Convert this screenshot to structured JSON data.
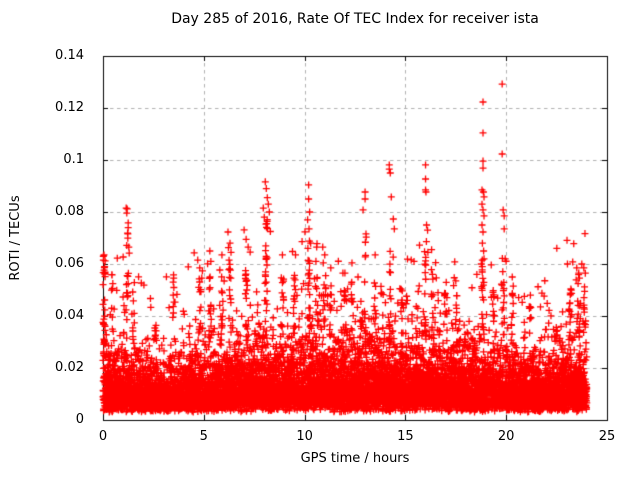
{
  "window": {
    "background": "#ffffff",
    "text_color": "#000000"
  },
  "chart_data": {
    "type": "scatter",
    "title": "Day 285 of 2016, Rate Of TEC Index for receiver ista",
    "xlabel": "GPS time / hours",
    "ylabel": "ROTI / TECUs",
    "xlim": [
      0,
      25
    ],
    "ylim": [
      0,
      0.14
    ],
    "xticks": [
      0,
      5,
      10,
      15,
      20,
      25
    ],
    "yticks": [
      0,
      0.02,
      0.04,
      0.06,
      0.08,
      0.1,
      0.12,
      0.14
    ],
    "xtick_labels": [
      "0",
      "5",
      "10",
      "15",
      "20",
      "25"
    ],
    "ytick_labels": [
      "0",
      "0.02",
      "0.04",
      "0.06",
      "0.08",
      "0.1",
      "0.12",
      "0.14"
    ],
    "grid": true,
    "grid_color": "#b0b0b0",
    "frame_color": "#000000",
    "marker": "plus",
    "marker_size": 7,
    "color": "#ff0000",
    "x_data_range": [
      0,
      24
    ],
    "n_points": 9000,
    "seed": 7,
    "y_floor": 0.003,
    "tail_fraction": 0.07,
    "hourly_dense_top": [
      0.03,
      0.027,
      0.023,
      0.022,
      0.024,
      0.027,
      0.028,
      0.03,
      0.032,
      0.031,
      0.034,
      0.032,
      0.031,
      0.032,
      0.034,
      0.031,
      0.032,
      0.029,
      0.031,
      0.029,
      0.027,
      0.024,
      0.026,
      0.03
    ],
    "hourly_max": [
      0.052,
      0.05,
      0.042,
      0.04,
      0.048,
      0.053,
      0.054,
      0.056,
      0.058,
      0.056,
      0.058,
      0.055,
      0.052,
      0.055,
      0.056,
      0.052,
      0.055,
      0.048,
      0.056,
      0.052,
      0.048,
      0.043,
      0.047,
      0.058
    ],
    "clusters": [
      {
        "x": 0.05,
        "top": 0.063,
        "n": 22
      },
      {
        "x": 0.45,
        "top": 0.056,
        "n": 8
      },
      {
        "x": 1.2,
        "top": 0.075,
        "n": 14
      },
      {
        "x": 1.5,
        "top": 0.053,
        "n": 8
      },
      {
        "x": 2.6,
        "top": 0.044,
        "n": 8
      },
      {
        "x": 3.5,
        "top": 0.056,
        "n": 8
      },
      {
        "x": 4.8,
        "top": 0.06,
        "n": 12
      },
      {
        "x": 5.3,
        "top": 0.058,
        "n": 12
      },
      {
        "x": 5.9,
        "top": 0.056,
        "n": 10
      },
      {
        "x": 6.3,
        "top": 0.062,
        "n": 12
      },
      {
        "x": 7.1,
        "top": 0.06,
        "n": 12
      },
      {
        "x": 8.1,
        "top": 0.078,
        "n": 22
      },
      {
        "x": 8.9,
        "top": 0.056,
        "n": 10
      },
      {
        "x": 9.5,
        "top": 0.057,
        "n": 12
      },
      {
        "x": 10.2,
        "top": 0.072,
        "n": 16
      },
      {
        "x": 10.6,
        "top": 0.058,
        "n": 10
      },
      {
        "x": 11.0,
        "top": 0.058,
        "n": 10
      },
      {
        "x": 11.3,
        "top": 0.052,
        "n": 8
      },
      {
        "x": 12.0,
        "top": 0.05,
        "n": 8
      },
      {
        "x": 12.35,
        "top": 0.053,
        "n": 8
      },
      {
        "x": 13.0,
        "top": 0.072,
        "n": 10
      },
      {
        "x": 13.5,
        "top": 0.056,
        "n": 8
      },
      {
        "x": 14.25,
        "top": 0.068,
        "n": 12
      },
      {
        "x": 14.8,
        "top": 0.05,
        "n": 8
      },
      {
        "x": 16.0,
        "top": 0.07,
        "n": 14
      },
      {
        "x": 16.35,
        "top": 0.058,
        "n": 10
      },
      {
        "x": 17.0,
        "top": 0.05,
        "n": 8
      },
      {
        "x": 17.5,
        "top": 0.048,
        "n": 8
      },
      {
        "x": 18.85,
        "top": 0.062,
        "n": 18
      },
      {
        "x": 19.35,
        "top": 0.05,
        "n": 8
      },
      {
        "x": 19.85,
        "top": 0.058,
        "n": 10
      },
      {
        "x": 20.3,
        "top": 0.05,
        "n": 8
      },
      {
        "x": 21.2,
        "top": 0.044,
        "n": 6
      },
      {
        "x": 23.2,
        "top": 0.052,
        "n": 10
      },
      {
        "x": 23.6,
        "top": 0.056,
        "n": 12
      },
      {
        "x": 23.9,
        "top": 0.058,
        "n": 10
      }
    ],
    "peaks": [
      [
        0.02,
        0.0615
      ],
      [
        0.05,
        0.0635
      ],
      [
        0.08,
        0.059
      ],
      [
        0.1,
        0.0565
      ],
      [
        0.45,
        0.0558
      ],
      [
        1.0,
        0.0627
      ],
      [
        1.15,
        0.0815
      ],
      [
        1.2,
        0.0812
      ],
      [
        1.18,
        0.0796
      ],
      [
        1.25,
        0.0758
      ],
      [
        1.22,
        0.0719
      ],
      [
        1.28,
        0.0665
      ],
      [
        1.3,
        0.0642
      ],
      [
        1.9,
        0.0527
      ],
      [
        3.5,
        0.0558
      ],
      [
        4.7,
        0.0615
      ],
      [
        4.8,
        0.0585
      ],
      [
        4.9,
        0.0546
      ],
      [
        5.3,
        0.065
      ],
      [
        5.35,
        0.061
      ],
      [
        5.9,
        0.0635
      ],
      [
        6.2,
        0.0723
      ],
      [
        6.3,
        0.068
      ],
      [
        6.35,
        0.0645
      ],
      [
        7.0,
        0.0731
      ],
      [
        7.1,
        0.0695
      ],
      [
        7.2,
        0.0665
      ],
      [
        7.3,
        0.0646
      ],
      [
        7.95,
        0.0815
      ],
      [
        8.05,
        0.0916
      ],
      [
        8.1,
        0.089
      ],
      [
        8.15,
        0.0855
      ],
      [
        8.2,
        0.083
      ],
      [
        8.25,
        0.08
      ],
      [
        8.0,
        0.078
      ],
      [
        8.12,
        0.0755
      ],
      [
        8.3,
        0.0725
      ],
      [
        8.9,
        0.0635
      ],
      [
        9.4,
        0.0648
      ],
      [
        9.55,
        0.0635
      ],
      [
        10.2,
        0.0904
      ],
      [
        10.2,
        0.085
      ],
      [
        10.25,
        0.08
      ],
      [
        10.15,
        0.077
      ],
      [
        10.22,
        0.0735
      ],
      [
        10.3,
        0.068
      ],
      [
        10.6,
        0.0665
      ],
      [
        10.9,
        0.0665
      ],
      [
        11.0,
        0.0635
      ],
      [
        11.3,
        0.0585
      ],
      [
        11.9,
        0.0565
      ],
      [
        12.0,
        0.0565
      ],
      [
        12.35,
        0.0604
      ],
      [
        12.65,
        0.055
      ],
      [
        12.9,
        0.0808
      ],
      [
        13.0,
        0.0877
      ],
      [
        13.0,
        0.085
      ],
      [
        13.5,
        0.0635
      ],
      [
        14.2,
        0.0981
      ],
      [
        14.2,
        0.0965
      ],
      [
        14.25,
        0.095
      ],
      [
        14.3,
        0.0858
      ],
      [
        14.4,
        0.0773
      ],
      [
        14.45,
        0.0735
      ],
      [
        16.0,
        0.0981
      ],
      [
        16.0,
        0.0927
      ],
      [
        16.0,
        0.0885
      ],
      [
        16.02,
        0.0877
      ],
      [
        16.05,
        0.075
      ],
      [
        16.1,
        0.073
      ],
      [
        16.3,
        0.0655
      ],
      [
        16.5,
        0.0605
      ],
      [
        17.5,
        0.0535
      ],
      [
        18.85,
        0.1223
      ],
      [
        18.85,
        0.1104
      ],
      [
        18.85,
        0.0996
      ],
      [
        18.85,
        0.0969
      ],
      [
        18.8,
        0.0885
      ],
      [
        18.87,
        0.0877
      ],
      [
        18.9,
        0.0858
      ],
      [
        18.8,
        0.083
      ],
      [
        18.85,
        0.0808
      ],
      [
        18.9,
        0.0785
      ],
      [
        18.8,
        0.075
      ],
      [
        18.85,
        0.0723
      ],
      [
        18.82,
        0.068
      ],
      [
        18.88,
        0.065
      ],
      [
        18.9,
        0.062
      ],
      [
        19.8,
        0.1292
      ],
      [
        19.8,
        0.1023
      ],
      [
        19.85,
        0.0808
      ],
      [
        19.9,
        0.0785
      ],
      [
        19.9,
        0.0735
      ],
      [
        19.95,
        0.062
      ],
      [
        20.3,
        0.055
      ],
      [
        20.35,
        0.0515
      ],
      [
        21.2,
        0.048
      ],
      [
        21.7,
        0.0435
      ],
      [
        23.3,
        0.0608
      ],
      [
        23.5,
        0.0585
      ],
      [
        23.6,
        0.0565
      ],
      [
        23.75,
        0.06
      ],
      [
        23.85,
        0.0585
      ]
    ]
  }
}
